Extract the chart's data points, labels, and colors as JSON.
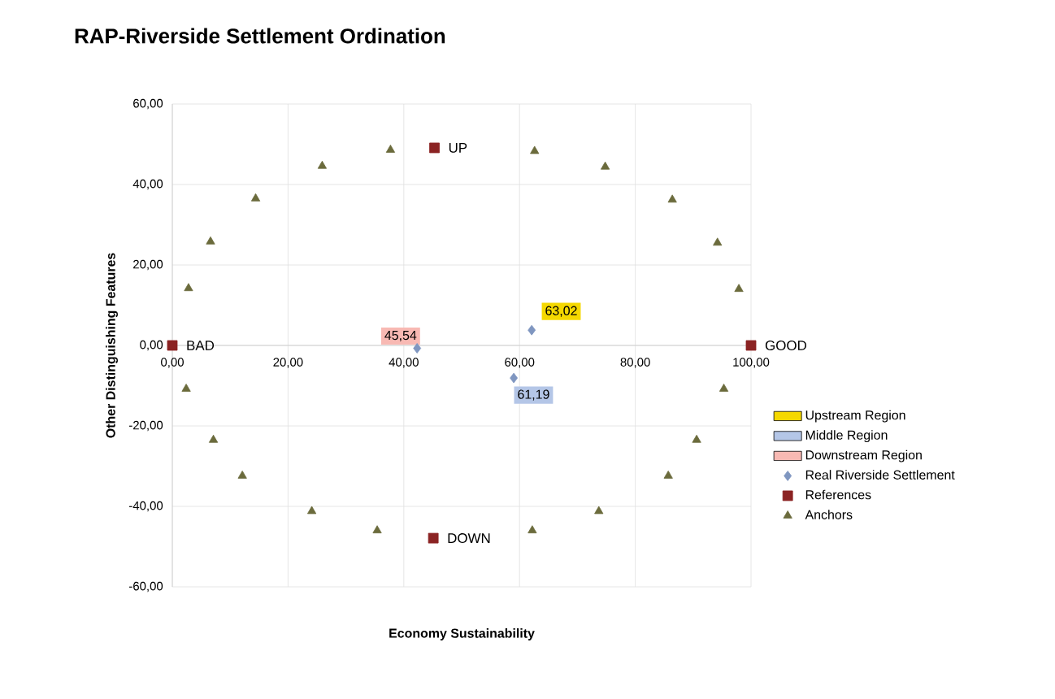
{
  "chart_data": {
    "type": "scatter",
    "title": "RAP-Riverside Settlement Ordination",
    "xlabel": "Economy Sustainability",
    "ylabel": "Other Distinguishing Features",
    "xlim": [
      0,
      100
    ],
    "ylim": [
      -60,
      60
    ],
    "xticks": [
      {
        "value": 0,
        "label": "0,00"
      },
      {
        "value": 20,
        "label": "20,00"
      },
      {
        "value": 40,
        "label": "40,00"
      },
      {
        "value": 60,
        "label": "60,00"
      },
      {
        "value": 80,
        "label": "80,00"
      },
      {
        "value": 100,
        "label": "100,00"
      }
    ],
    "yticks": [
      {
        "value": -60,
        "label": "-60,00"
      },
      {
        "value": -40,
        "label": "-40,00"
      },
      {
        "value": -20,
        "label": "-20,00"
      },
      {
        "value": 0,
        "label": "0,00"
      },
      {
        "value": 20,
        "label": "20,00"
      },
      {
        "value": 40,
        "label": "40,00"
      },
      {
        "value": 60,
        "label": "60,00"
      }
    ],
    "grid": true,
    "legend": "right",
    "annotations": [
      {
        "text": "63,02",
        "x": 62.1,
        "y": 3.8
      },
      {
        "text": "61,19",
        "x": 59.0,
        "y": -8.1
      },
      {
        "text": "45,54",
        "x": 42.3,
        "y": -0.7
      }
    ],
    "series": [
      {
        "name": "Upstream Region",
        "color": "#f5d800"
      },
      {
        "name": "Middle Region",
        "color": "#b4c6e7"
      },
      {
        "name": "Downstream Region",
        "color": "#f8b9b3"
      },
      {
        "name": "Real Riverside Settlement",
        "color": "#7f96c0",
        "marker": "diamond",
        "x": [
          42.3,
          62.1,
          59.0
        ],
        "values": [
          -0.7,
          3.8,
          -8.1
        ]
      },
      {
        "name": "References",
        "color": "#8b2323",
        "marker": "square",
        "x": [
          0,
          45.3,
          100,
          45.1
        ],
        "values": [
          0,
          49.1,
          0,
          -47.9
        ],
        "value_labels": [
          "BAD",
          "UP",
          "GOOD",
          "DOWN"
        ]
      },
      {
        "name": "Anchors",
        "color": "#6b6b3c",
        "marker": "triangle",
        "x": [
          2.8,
          6.6,
          14.4,
          25.9,
          37.7,
          62.6,
          74.8,
          86.4,
          94.2,
          97.9,
          2.4,
          7.1,
          12.1,
          24.1,
          35.4,
          62.2,
          73.7,
          85.7,
          90.6,
          95.3
        ],
        "values": [
          14.2,
          25.8,
          36.5,
          44.6,
          48.6,
          48.3,
          44.4,
          36.2,
          25.5,
          14.0,
          -10.8,
          -23.5,
          -32.4,
          -41.2,
          -46,
          -46,
          -41.2,
          -32.4,
          -23.5,
          -10.8
        ]
      }
    ]
  }
}
